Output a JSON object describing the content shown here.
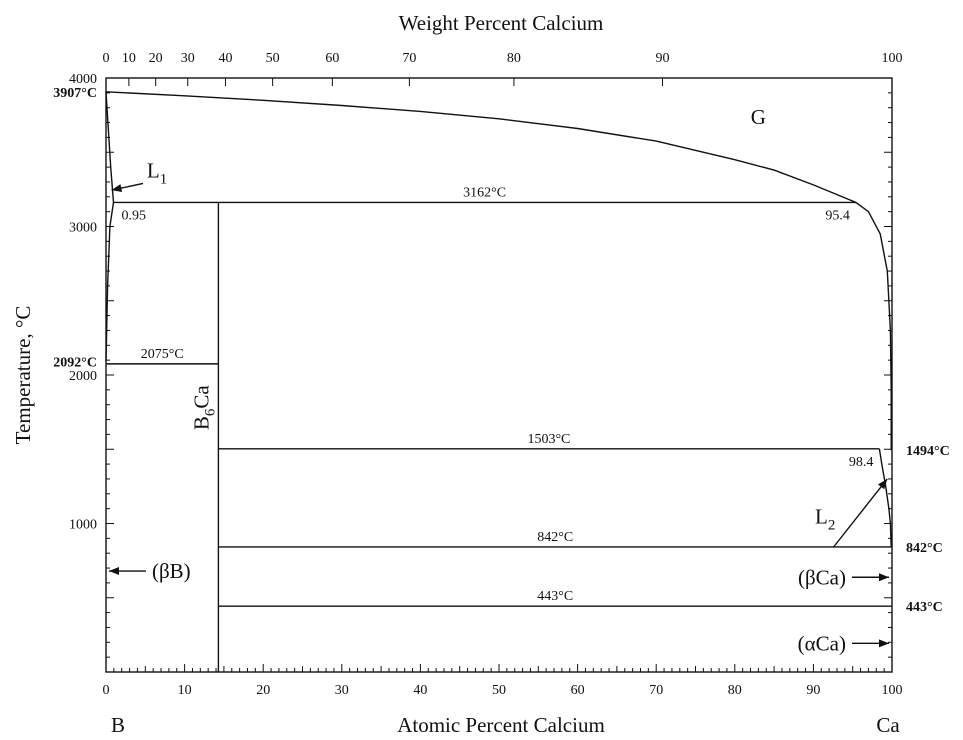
{
  "chart_data": {
    "type": "phase-diagram",
    "top_axis_label": "Weight Percent Calcium",
    "bottom_axis_label": "Atomic Percent Calcium",
    "y_axis_label": "Temperature, °C",
    "left_element": "B",
    "right_element": "Ca",
    "x_range": [
      0,
      100
    ],
    "y_range": [
      0,
      4000
    ],
    "bottom_ticks": [
      "0",
      "10",
      "20",
      "30",
      "40",
      "50",
      "60",
      "70",
      "80",
      "90",
      "100"
    ],
    "top_ticks": [
      {
        "label": "0",
        "at": 0
      },
      {
        "label": "10",
        "at": 2.91
      },
      {
        "label": "20",
        "at": 6.32
      },
      {
        "label": "30",
        "at": 10.4
      },
      {
        "label": "40",
        "at": 15.2
      },
      {
        "label": "50",
        "at": 21.2
      },
      {
        "label": "60",
        "at": 28.8
      },
      {
        "label": "70",
        "at": 38.6
      },
      {
        "label": "80",
        "at": 51.9
      },
      {
        "label": "90",
        "at": 70.8
      },
      {
        "label": "100",
        "at": 100
      }
    ],
    "y_ticks": [
      {
        "label": "4000",
        "at": 4000
      },
      {
        "label": "3000",
        "at": 3000
      },
      {
        "label": "2000",
        "at": 2000
      },
      {
        "label": "1000",
        "at": 1000
      }
    ],
    "left_temps": [
      {
        "label": "3907°C",
        "T": 3907
      },
      {
        "label": "2092°C",
        "T": 2092
      }
    ],
    "right_temps": [
      {
        "label": "1494°C",
        "T": 1494
      },
      {
        "label": "842°C",
        "T": 842
      },
      {
        "label": "443°C",
        "T": 443
      }
    ],
    "isotherms": [
      {
        "label": "3162°C",
        "T": 3162,
        "x1": 0.95,
        "x2": 95.4
      },
      {
        "label": "2075°C",
        "T": 2075,
        "x1": 0,
        "x2": 14.3
      },
      {
        "label": "1503°C",
        "T": 1503,
        "x1": 14.3,
        "x2": 98.4
      },
      {
        "label": "842°C",
        "T": 842,
        "x1": 14.3,
        "x2": 100
      },
      {
        "label": "443°C",
        "T": 443,
        "x1": 14.3,
        "x2": 100
      }
    ],
    "compound": {
      "label_main": "B",
      "label_sub": "6",
      "label_end": "Ca",
      "x": 14.3,
      "T_top": 3162,
      "T_bottom": 0
    },
    "composition_labels": [
      {
        "label": "0.95",
        "x": 0.95,
        "T": 3162
      },
      {
        "label": "95.4",
        "x": 95.4,
        "T": 3162
      },
      {
        "label": "98.4",
        "x": 98.4,
        "T": 1503
      }
    ],
    "regions": [
      {
        "label": "G",
        "x": 83,
        "T": 3690
      },
      {
        "label_main": "L",
        "label_sub": "1",
        "x": 6.5,
        "T": 3330
      },
      {
        "label_main": "L",
        "label_sub": "2",
        "x": 91.5,
        "T": 1000
      }
    ],
    "phase_arrows": [
      {
        "label": "(βB)",
        "T": 680,
        "side": "left"
      },
      {
        "label": "(βCa)",
        "T": 638,
        "side": "right"
      },
      {
        "label": "(αCa)",
        "T": 193,
        "side": "right"
      }
    ],
    "gas_boundary": [
      [
        0,
        3907
      ],
      [
        10,
        3880
      ],
      [
        20,
        3850
      ],
      [
        30,
        3815
      ],
      [
        40,
        3775
      ],
      [
        50,
        3725
      ],
      [
        60,
        3660
      ],
      [
        70,
        3575
      ],
      [
        80,
        3450
      ],
      [
        85,
        3380
      ],
      [
        90,
        3280
      ],
      [
        95.4,
        3162
      ],
      [
        97,
        3100
      ],
      [
        98.5,
        2950
      ],
      [
        99.4,
        2700
      ],
      [
        99.8,
        2300
      ],
      [
        99.9,
        1900
      ],
      [
        99.9,
        1494
      ]
    ],
    "left_liquidus": [
      [
        0,
        3907
      ],
      [
        0.3,
        3650
      ],
      [
        0.6,
        3400
      ],
      [
        0.95,
        3162
      ],
      [
        0.5,
        3000
      ],
      [
        0.2,
        2600
      ],
      [
        0,
        2092
      ]
    ],
    "right_liquidus": [
      [
        98.4,
        1503
      ],
      [
        98.7,
        1400
      ],
      [
        99.2,
        1250
      ],
      [
        99.6,
        1100
      ],
      [
        99.8,
        1000
      ],
      [
        99.9,
        842
      ]
    ]
  }
}
